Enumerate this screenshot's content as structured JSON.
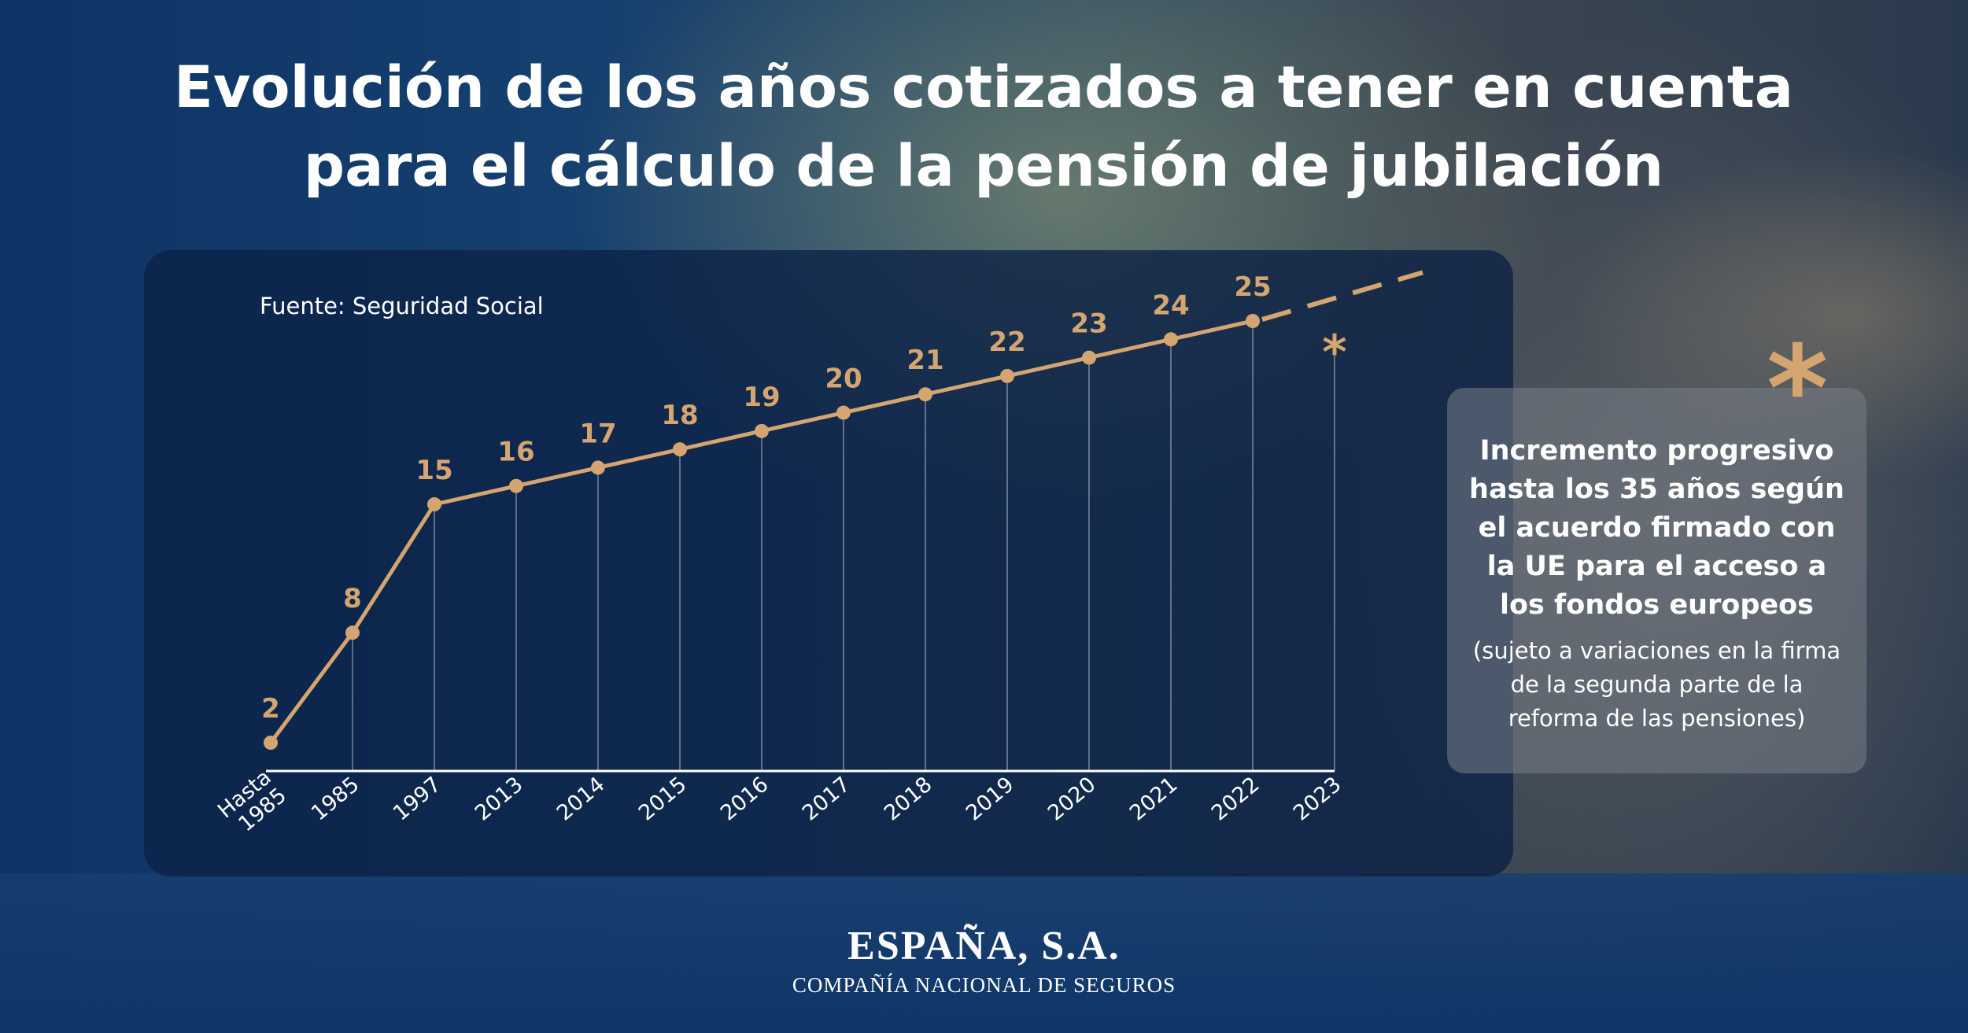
{
  "title": {
    "line1": "Evolución de los años cotizados a tener en cuenta",
    "line2": "para el cálculo de la pensión de jubilación"
  },
  "source": "Fuente: Seguridad Social",
  "chart_data": {
    "type": "line",
    "categories": [
      "Hasta 1985",
      "1985",
      "1997",
      "2013",
      "2014",
      "2015",
      "2016",
      "2017",
      "2018",
      "2019",
      "2020",
      "2021",
      "2022",
      "2023"
    ],
    "values": [
      2,
      8,
      15,
      16,
      17,
      18,
      19,
      20,
      21,
      22,
      23,
      24,
      25,
      null
    ],
    "value_labels": [
      "2",
      "8",
      "15",
      "16",
      "17",
      "18",
      "19",
      "20",
      "21",
      "22",
      "23",
      "24",
      "25",
      "*"
    ],
    "projection": {
      "label": "*",
      "style": "dashed"
    },
    "ylim": [
      0,
      27
    ],
    "grid": false,
    "color": "#d4a570"
  },
  "note": {
    "star": "*",
    "main": "Incremento progresivo hasta los 35 años según el acuerdo firmado con la UE para el acceso a los fondos europeos",
    "sub": "(sujeto a variaciones en la firma de la segunda parte de la reforma de las pensiones)"
  },
  "brand": {
    "name": "ESPAÑA, S.A.",
    "tagline": "COMPAÑÍA NACIONAL DE SEGUROS"
  }
}
